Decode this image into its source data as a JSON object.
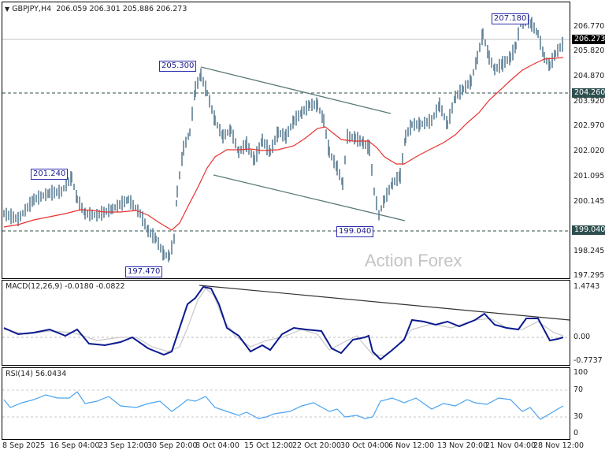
{
  "header": {
    "symbol_timeframe": "GBPJPY,H4",
    "ohlc": "206.059 206.301 205.886 206.273",
    "menu_icon": "triangle-down-icon"
  },
  "watermark": "Action Forex",
  "main_chart": {
    "price_axis_labels": [
      "206.770",
      "205.820",
      "204.870",
      "203.920",
      "202.970",
      "202.020",
      "201.095",
      "200.145",
      "198.245",
      "197.295"
    ],
    "current_price_tag": "206.273",
    "level_tags": [
      "204.260",
      "199.040"
    ],
    "annotations": [
      "207.180",
      "205.300",
      "201.240",
      "197.470",
      "199.040"
    ]
  },
  "macd": {
    "title": "MACD(12,26,9) -0.0180 -0.0822",
    "axis_labels": [
      "1.4743",
      "0.00",
      "-0.7737"
    ]
  },
  "rsi": {
    "title": "RSI(14) 56.0434",
    "axis_labels": [
      "100",
      "70",
      "30",
      "0"
    ]
  },
  "time_axis": [
    "8 Sep 2025",
    "16 Sep 04:00",
    "23 Sep 12:00",
    "30 Sep 20:00",
    "8 Oct 04:00",
    "15 Oct 12:00",
    "22 Oct 20:00",
    "30 Oct 04:00",
    "6 Nov 12:00",
    "13 Nov 20:00",
    "21 Nov 04:00",
    "28 Nov 12:00"
  ],
  "colors": {
    "bars": "#5f8196",
    "sma": "#e8322f",
    "macd_main": "#0b1a8f",
    "macd_signal": "#c8c8c8",
    "rsi": "#4aa3f0",
    "level_line": "#2d4f4a",
    "tag_bg": "#2f4f4f",
    "current_tag_bg": "#000000"
  },
  "chart_data": [
    {
      "type": "line",
      "title": "GBPJPY,H4",
      "subtitle": "206.059 206.301 205.886 206.273",
      "xlabel": "",
      "ylabel": "",
      "ylim": [
        197.295,
        207.3
      ],
      "grid": false,
      "x": [
        "8 Sep 2025",
        "16 Sep 04:00",
        "23 Sep 12:00",
        "30 Sep 20:00",
        "8 Oct 04:00",
        "15 Oct 12:00",
        "22 Oct 20:00",
        "30 Oct 04:00",
        "6 Nov 12:00",
        "13 Nov 20:00",
        "21 Nov 04:00",
        "28 Nov 12:00"
      ],
      "series": [
        {
          "name": "GBPJPY close (approx)",
          "values": [
            200.0,
            200.6,
            200.2,
            198.3,
            205.0,
            201.6,
            203.8,
            201.9,
            201.8,
            203.6,
            205.4,
            205.5
          ]
        },
        {
          "name": "SMA (red)",
          "values": [
            199.7,
            200.4,
            200.3,
            199.3,
            201.8,
            202.1,
            202.8,
            202.5,
            201.0,
            202.2,
            204.3,
            205.5
          ]
        }
      ],
      "annotations": [
        {
          "label": "201.240",
          "type": "swing high"
        },
        {
          "label": "197.470",
          "type": "swing low"
        },
        {
          "label": "205.300",
          "type": "swing high"
        },
        {
          "label": "199.040",
          "type": "swing low"
        },
        {
          "label": "207.180",
          "type": "swing high"
        }
      ],
      "horizontal_levels": [
        204.26,
        199.04
      ],
      "current_price": 206.273,
      "trendlines": [
        "falling channel upper 205.3 -> ~203.3",
        "falling channel lower ~201.4 -> ~199.5"
      ]
    },
    {
      "type": "line",
      "title": "MACD(12,26,9) -0.0180 -0.0822",
      "ylim": [
        -0.7737,
        1.4743
      ],
      "series": [
        {
          "name": "MACD",
          "values": [
            0.2,
            0.1,
            0.1,
            -0.4,
            1.45,
            -0.2,
            0.1,
            -0.6,
            0.5,
            0.7,
            0.3,
            -0.02
          ]
        },
        {
          "name": "Signal",
          "values": [
            0.15,
            0.1,
            0.1,
            -0.3,
            1.2,
            -0.1,
            0.1,
            -0.4,
            0.4,
            0.6,
            0.35,
            -0.08
          ]
        }
      ],
      "annotations": [
        {
          "label": "falling trendline on MACD peaks"
        }
      ]
    },
    {
      "type": "line",
      "title": "RSI(14) 56.0434",
      "ylim": [
        0,
        100
      ],
      "levels": [
        70,
        30
      ],
      "series": [
        {
          "name": "RSI(14)",
          "values": [
            55,
            60,
            52,
            40,
            72,
            48,
            58,
            40,
            68,
            65,
            60,
            56
          ]
        }
      ]
    }
  ]
}
